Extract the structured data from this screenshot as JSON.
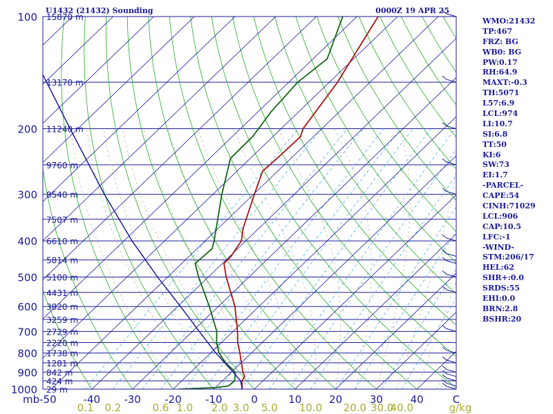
{
  "header": {
    "title": "U1432 (21432) Sounding",
    "valid": "0000Z 19 APR 25"
  },
  "stats": [
    "WMO:21432",
    "TP:467",
    "FRZ: BG",
    "WB0: BG",
    "PW:0.17",
    "RH:64.9",
    "MAXT:-0.3",
    "TH:5071",
    "L57:6.9",
    "LCL:974",
    "LI:10.7",
    "SI:6.8",
    "TT:50",
    "KI:6",
    "SW:73",
    "EI:1.7",
    "-PARCEL-",
    "CAPE:54",
    "CINH:71029",
    "LCL:906",
    "CAP:10.5",
    "LFC:-1",
    "-WIND-",
    "STM:206/17",
    "HEL:62",
    "SHR+:0.0",
    "SRDS:55",
    "EHI:0.0",
    "BRN:2.8",
    "BSHR:20"
  ],
  "colors": {
    "axis_text": "#1a1a99",
    "isobar": "#1a1a99",
    "isotherm": "#1a1a99",
    "dry_adiabat": "#22aa22",
    "moist_adiabat": "#bbbb99",
    "mixing_ratio": "#44aaee",
    "temperature": "#aa1111",
    "dewpoint": "#116611",
    "parcel": "#1a1a99",
    "temp_ticks": "#1a1a99",
    "mixing_ticks": "#aaaa33"
  },
  "chart_data": {
    "type": "line",
    "chart_kind": "skew-t log-p sounding",
    "y_axis_unit": "mb",
    "y_axis_scale": "log",
    "ylim": [
      1000,
      100
    ],
    "xlim": [
      -50,
      50
    ],
    "pressure_ticks": [
      "100",
      "200",
      "300",
      "400",
      "500",
      "600",
      "700",
      "800",
      "900",
      "1000"
    ],
    "height_labels": [
      {
        "p": 100,
        "label": "15870 m"
      },
      {
        "p": 150,
        "label": "13170 m"
      },
      {
        "p": 200,
        "label": "11240 m"
      },
      {
        "p": 250,
        "label": "9760 m"
      },
      {
        "p": 300,
        "label": "8540 m"
      },
      {
        "p": 350,
        "label": "7507 m"
      },
      {
        "p": 400,
        "label": "6610 m"
      },
      {
        "p": 450,
        "label": "5814 m"
      },
      {
        "p": 500,
        "label": "5100 m"
      },
      {
        "p": 550,
        "label": "4431 m"
      },
      {
        "p": 600,
        "label": "3820 m"
      },
      {
        "p": 650,
        "label": "3259 m"
      },
      {
        "p": 700,
        "label": "2729 m"
      },
      {
        "p": 750,
        "label": "2220 m"
      },
      {
        "p": 800,
        "label": "1738 m"
      },
      {
        "p": 850,
        "label": "1281 m"
      },
      {
        "p": 900,
        "label": "842 m"
      },
      {
        "p": 950,
        "label": "424 m"
      },
      {
        "p": 1000,
        "label": "29 m"
      }
    ],
    "temp_tick_labels": [
      {
        "value": -50,
        "label": "mb-50"
      },
      {
        "value": -40,
        "label": "-40"
      },
      {
        "value": -30,
        "label": "-30"
      },
      {
        "value": -20,
        "label": "-20"
      },
      {
        "value": -10,
        "label": "-10"
      },
      {
        "value": 0,
        "label": "0"
      },
      {
        "value": 10,
        "label": "10"
      },
      {
        "value": 20,
        "label": "20"
      },
      {
        "value": 30,
        "label": "30"
      },
      {
        "value": 40,
        "label": "40"
      },
      {
        "value": 50,
        "label": "C"
      }
    ],
    "mixing_ratio_labels": [
      {
        "w": 0.1,
        "label": "0.1"
      },
      {
        "w": 0.2,
        "label": "0.2"
      },
      {
        "w": 0.6,
        "label": "0.6"
      },
      {
        "w": 1.0,
        "label": "1.0"
      },
      {
        "w": 2.0,
        "label": "2.0"
      },
      {
        "w": 3.0,
        "label": "3.0"
      },
      {
        "w": 5.0,
        "label": "5.0"
      },
      {
        "w": 10.0,
        "label": "10.0"
      },
      {
        "w": 20.0,
        "label": "20.0"
      },
      {
        "w": 30.0,
        "label": "30.0"
      },
      {
        "w": 40.0,
        "label": "40.0"
      },
      {
        "w": null,
        "label": "g/kg"
      }
    ],
    "series": [
      {
        "key": "temperature",
        "points": [
          {
            "p": 1000,
            "t": -3.0
          },
          {
            "p": 950,
            "t": -5.2
          },
          {
            "p": 925,
            "t": -5.6
          },
          {
            "p": 900,
            "t": -7.2
          },
          {
            "p": 850,
            "t": -9.9
          },
          {
            "p": 800,
            "t": -12.8
          },
          {
            "p": 750,
            "t": -16.0
          },
          {
            "p": 700,
            "t": -18.9
          },
          {
            "p": 600,
            "t": -25.9
          },
          {
            "p": 500,
            "t": -35.6
          },
          {
            "p": 460,
            "t": -39.6
          },
          {
            "p": 440,
            "t": -39.7
          },
          {
            "p": 400,
            "t": -41.1
          },
          {
            "p": 370,
            "t": -43.9
          },
          {
            "p": 300,
            "t": -49.8
          },
          {
            "p": 260,
            "t": -53.7
          },
          {
            "p": 240,
            "t": -53.4
          },
          {
            "p": 210,
            "t": -53.2
          },
          {
            "p": 200,
            "t": -54.6
          },
          {
            "p": 150,
            "t": -58.0
          },
          {
            "p": 130,
            "t": -60.4
          },
          {
            "p": 100,
            "t": -64.8
          }
        ]
      },
      {
        "key": "dewpoint",
        "points": [
          {
            "p": 1000,
            "t": -18.5
          },
          {
            "p": 990,
            "t": -9.8
          },
          {
            "p": 980,
            "t": -7.2
          },
          {
            "p": 950,
            "t": -7.0
          },
          {
            "p": 900,
            "t": -9.0
          },
          {
            "p": 850,
            "t": -13.8
          },
          {
            "p": 800,
            "t": -17.9
          },
          {
            "p": 750,
            "t": -21.2
          },
          {
            "p": 700,
            "t": -24.0
          },
          {
            "p": 600,
            "t": -32.2
          },
          {
            "p": 500,
            "t": -42.4
          },
          {
            "p": 460,
            "t": -46.7
          },
          {
            "p": 420,
            "t": -46.3
          },
          {
            "p": 400,
            "t": -47.8
          },
          {
            "p": 300,
            "t": -57.8
          },
          {
            "p": 240,
            "t": -64.9
          },
          {
            "p": 210,
            "t": -65.0
          },
          {
            "p": 180,
            "t": -66.8
          },
          {
            "p": 150,
            "t": -67.8
          },
          {
            "p": 130,
            "t": -66.5
          },
          {
            "p": 100,
            "t": -73.5
          }
        ]
      },
      {
        "key": "parcel",
        "points": [
          {
            "p": 1000,
            "t": -3.0
          },
          {
            "p": 950,
            "t": -5.5
          },
          {
            "p": 906,
            "t": -9.1
          },
          {
            "p": 800,
            "t": -18.7
          },
          {
            "p": 700,
            "t": -28.3
          },
          {
            "p": 600,
            "t": -39.3
          },
          {
            "p": 500,
            "t": -52.5
          },
          {
            "p": 400,
            "t": -68.0
          },
          {
            "p": 300,
            "t": -86.7
          },
          {
            "p": 200,
            "t": -111.9
          },
          {
            "p": 100,
            "t": -154.5
          }
        ]
      }
    ],
    "wind_levels_mb": [
      1000,
      980,
      950,
      925,
      900,
      850,
      800,
      700,
      550,
      500,
      460,
      440,
      400,
      300,
      250,
      200,
      150,
      100
    ]
  }
}
